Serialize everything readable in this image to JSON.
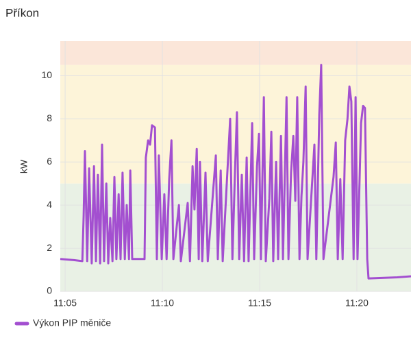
{
  "chart_data": {
    "type": "line",
    "title": "Příkon",
    "y_label": "kW",
    "x": [
      "11:04:45",
      "11:05:27",
      "11:05:53",
      "11:05:57",
      "11:06:01",
      "11:06:08",
      "11:06:14",
      "11:06:22",
      "11:06:29",
      "11:06:35",
      "11:06:41",
      "11:06:48",
      "11:06:54",
      "11:07:00",
      "11:07:07",
      "11:07:13",
      "11:07:19",
      "11:07:26",
      "11:07:32",
      "11:07:38",
      "11:07:45",
      "11:07:51",
      "11:07:57",
      "11:08:04",
      "11:08:10",
      "11:08:17",
      "11:08:21",
      "11:08:27",
      "11:09:05",
      "11:09:09",
      "11:09:16",
      "11:09:22",
      "11:09:28",
      "11:09:37",
      "11:09:43",
      "11:09:49",
      "11:09:58",
      "11:10:06",
      "11:10:13",
      "11:10:21",
      "11:10:28",
      "11:10:34",
      "11:10:51",
      "11:10:57",
      "11:11:18",
      "11:11:25",
      "11:11:33",
      "11:11:39",
      "11:11:46",
      "11:11:52",
      "11:11:56",
      "11:12:03",
      "11:12:13",
      "11:12:20",
      "11:12:45",
      "11:12:51",
      "11:13:00",
      "11:13:06",
      "11:13:29",
      "11:13:36",
      "11:13:44",
      "11:13:50",
      "11:13:57",
      "11:14:05",
      "11:14:12",
      "11:14:20",
      "11:14:26",
      "11:14:37",
      "11:14:43",
      "11:14:52",
      "11:14:58",
      "11:15:04",
      "11:15:13",
      "11:15:19",
      "11:15:30",
      "11:15:36",
      "11:15:42",
      "11:15:51",
      "11:15:57",
      "11:16:06",
      "11:16:12",
      "11:16:23",
      "11:16:29",
      "11:16:37",
      "11:16:44",
      "11:16:50",
      "11:16:56",
      "11:17:03",
      "11:17:09",
      "11:17:15",
      "11:17:22",
      "11:17:28",
      "11:17:49",
      "11:17:55",
      "11:18:04",
      "11:18:10",
      "11:18:17",
      "11:18:48",
      "11:18:55",
      "11:19:01",
      "11:19:09",
      "11:19:16",
      "11:19:24",
      "11:19:31",
      "11:19:37",
      "11:19:43",
      "11:19:50",
      "11:19:56",
      "11:20:02",
      "11:20:13",
      "11:20:19",
      "11:20:25",
      "11:20:32",
      "11:20:36",
      "11:22:05",
      "11:22:47"
    ],
    "series": [
      {
        "name": "Výkon PIP měniče",
        "color": "#a34fd0",
        "values": [
          1.5,
          1.45,
          1.4,
          3.5,
          6.5,
          1.4,
          5.7,
          1.3,
          5.8,
          1.4,
          5.4,
          1.3,
          6.8,
          1.4,
          5.0,
          1.3,
          3.4,
          1.4,
          5.3,
          1.5,
          4.5,
          1.5,
          5.5,
          1.5,
          4.0,
          1.5,
          5.6,
          1.5,
          1.5,
          6.2,
          7.0,
          6.8,
          7.7,
          7.6,
          1.5,
          6.3,
          1.5,
          4.5,
          1.5,
          5.2,
          7.0,
          1.5,
          4.0,
          1.4,
          4.1,
          1.4,
          5.8,
          3.8,
          6.6,
          1.5,
          6.0,
          1.4,
          5.5,
          1.4,
          6.3,
          1.5,
          5.6,
          1.4,
          8.0,
          1.5,
          5.6,
          8.3,
          1.5,
          5.4,
          1.4,
          6.2,
          1.4,
          7.8,
          1.5,
          5.8,
          7.3,
          1.5,
          9.0,
          1.4,
          4.3,
          7.4,
          1.4,
          6.0,
          1.5,
          7.2,
          1.5,
          9.0,
          1.5,
          5.5,
          7.2,
          4.2,
          9.0,
          1.5,
          4.4,
          6.0,
          9.5,
          1.5,
          6.8,
          1.5,
          8.2,
          10.5,
          1.5,
          5.3,
          6.9,
          1.5,
          5.2,
          1.5,
          7.0,
          8.0,
          9.5,
          8.8,
          1.5,
          9.0,
          1.5,
          7.8,
          8.6,
          8.5,
          1.5,
          0.6,
          0.65,
          0.7
        ]
      }
    ],
    "xlim": [
      "11:04:45",
      "11:22:47"
    ],
    "xticks": [
      "11:05",
      "11:10",
      "11:15",
      "11:20"
    ],
    "ylim": [
      0,
      11.6
    ],
    "yticks": [
      0,
      2,
      4,
      6,
      8,
      10
    ],
    "grid": true,
    "bands": [
      {
        "from": 0,
        "to": 5,
        "color": "#e9f1e5"
      },
      {
        "from": 5,
        "to": 10.5,
        "color": "#fdf4d9"
      },
      {
        "from": 10.5,
        "to": 11.6,
        "color": "#fbe6d9"
      }
    ],
    "legend": "bottom-left"
  }
}
